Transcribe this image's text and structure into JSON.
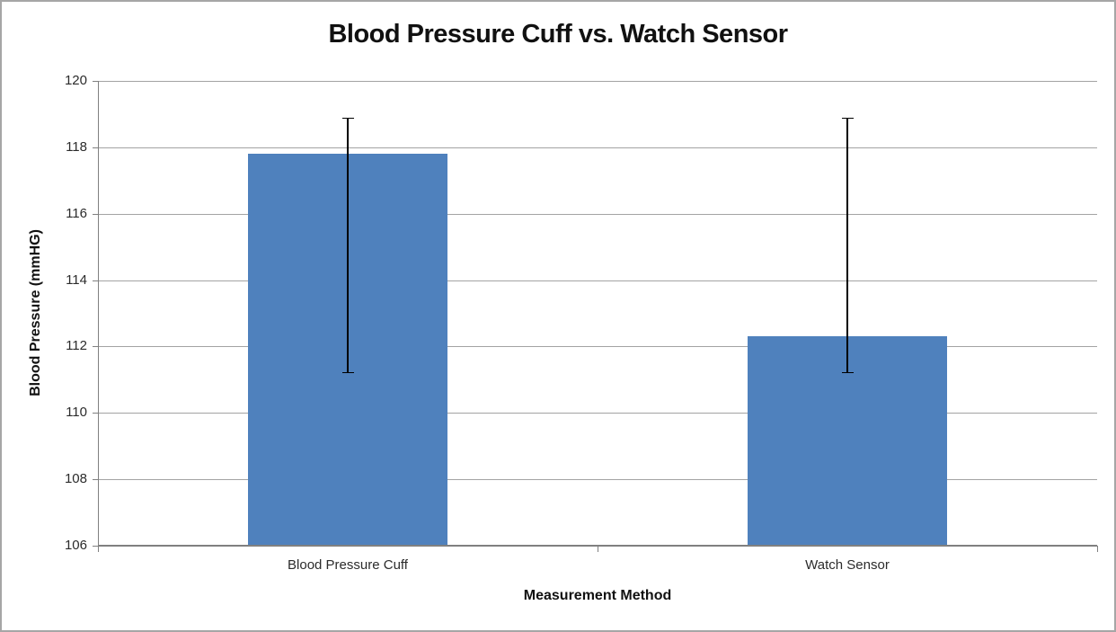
{
  "chart_data": {
    "type": "bar",
    "title": "Blood Pressure Cuff vs. Watch Sensor",
    "xlabel": "Measurement Method",
    "ylabel": "Blood Pressure (mmHG)",
    "categories": [
      "Blood Pressure Cuff",
      "Watch Sensor"
    ],
    "values": [
      117.8,
      112.3
    ],
    "error_bars": [
      {
        "low": 111.2,
        "high": 118.9
      },
      {
        "low": 111.2,
        "high": 118.9
      }
    ],
    "ylim": [
      106,
      120
    ],
    "yticks": [
      106,
      108,
      110,
      112,
      114,
      116,
      118,
      120
    ],
    "grid": true,
    "legend": "none",
    "bar_color": "#4F81BD",
    "gridline_color": "#a3a3a3",
    "axis_color": "#808080",
    "error_bar_color": "#000000",
    "border_color": "#a6a6a6"
  }
}
